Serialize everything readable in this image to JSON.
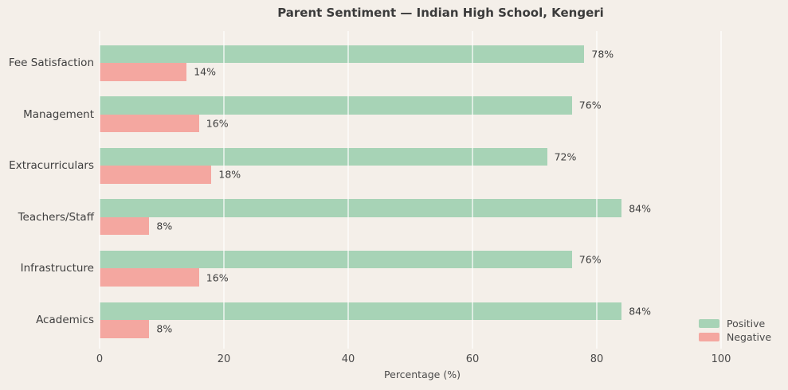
{
  "chart_data": {
    "type": "bar",
    "orientation": "horizontal",
    "title": "Parent Sentiment — Indian High School, Kengeri",
    "xlabel": "Percentage (%)",
    "xlim": [
      0,
      100
    ],
    "xticks": [
      0,
      20,
      40,
      60,
      80,
      100
    ],
    "grid": "vertical, white, drawn over bars",
    "legend_position": "lower right, outside plot",
    "background_color": "#f4efe9",
    "categories": [
      "Fee Satisfaction",
      "Management",
      "Extracurriculars",
      "Teachers/Staff",
      "Infrastructure",
      "Academics"
    ],
    "series": [
      {
        "name": "Positive",
        "color": "#a7d3b6",
        "values": [
          78,
          76,
          72,
          84,
          76,
          84
        ]
      },
      {
        "name": "Negative",
        "color": "#f4a7a0",
        "values": [
          14,
          16,
          18,
          8,
          16,
          8
        ]
      }
    ],
    "value_label_suffix": "%"
  }
}
